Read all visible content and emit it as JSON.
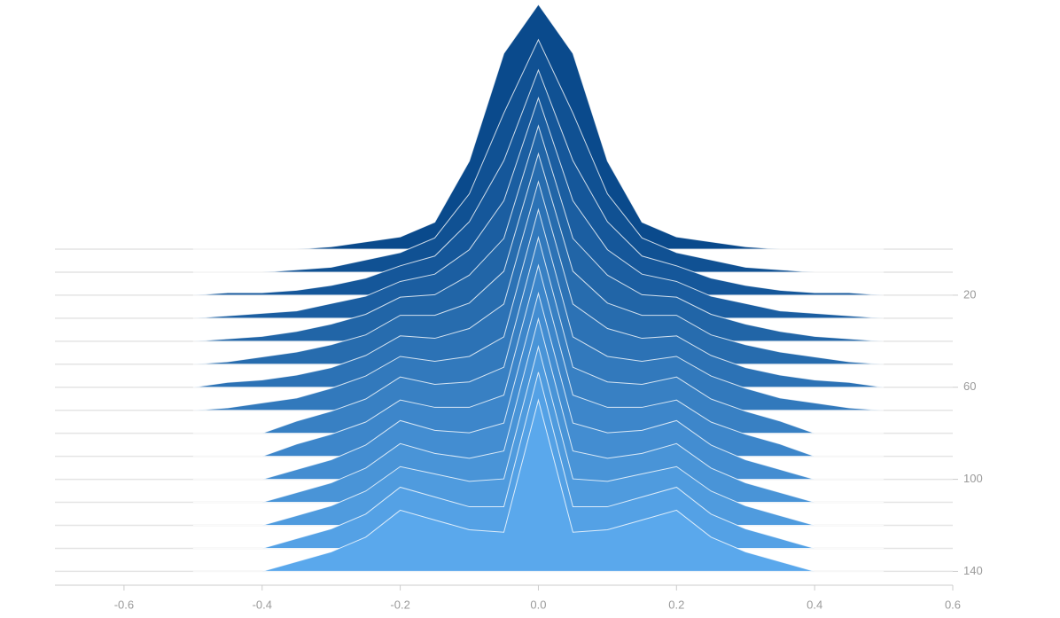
{
  "chart_data": {
    "type": "ridgeline",
    "x": [
      -0.5,
      -0.45,
      -0.4,
      -0.35,
      -0.3,
      -0.25,
      -0.2,
      -0.15,
      -0.1,
      -0.05,
      0,
      0.05,
      0.1,
      0.15,
      0.2,
      0.25,
      0.3,
      0.35,
      0.4,
      0.45,
      0.5
    ],
    "steps": [
      0,
      10,
      20,
      30,
      40,
      50,
      60,
      70,
      80,
      90,
      100,
      110,
      120,
      130,
      140
    ],
    "series": [
      {
        "color": "#0a4a8c",
        "values": [
          0,
          0,
          0,
          0,
          1,
          3,
          5,
          11,
          36,
          80,
          100,
          80,
          36,
          11,
          5,
          3,
          1,
          0,
          0,
          0,
          0
        ]
      },
      {
        "color": "#105193",
        "values": [
          0,
          0,
          0,
          1,
          2,
          5,
          8,
          14,
          32,
          65,
          95,
          65,
          32,
          14,
          8,
          5,
          2,
          1,
          0,
          0,
          0
        ]
      },
      {
        "color": "#15579a",
        "values": [
          0,
          1,
          1,
          2,
          4,
          7,
          12,
          16,
          30,
          55,
          92,
          55,
          30,
          16,
          12,
          7,
          4,
          2,
          1,
          1,
          0
        ]
      },
      {
        "color": "#1b5ea1",
        "values": [
          0,
          1,
          2,
          3,
          6,
          9,
          15,
          18,
          28,
          48,
          90,
          48,
          28,
          18,
          15,
          9,
          6,
          3,
          2,
          1,
          0
        ]
      },
      {
        "color": "#2165a7",
        "values": [
          0,
          1,
          2,
          4,
          7,
          11,
          18,
          19,
          27,
          42,
          88,
          42,
          27,
          19,
          18,
          11,
          7,
          4,
          2,
          1,
          0
        ]
      },
      {
        "color": "#276cae",
        "values": [
          0,
          1,
          3,
          5,
          8,
          12,
          20,
          20,
          25,
          38,
          86,
          38,
          25,
          20,
          20,
          12,
          8,
          5,
          3,
          1,
          0
        ]
      },
      {
        "color": "#2c72b5",
        "values": [
          0,
          2,
          3,
          5,
          8,
          13,
          21,
          20,
          24,
          34,
          84,
          34,
          24,
          20,
          21,
          13,
          8,
          5,
          3,
          2,
          0
        ]
      },
      {
        "color": "#3279bc",
        "values": [
          0,
          1,
          3,
          5,
          9,
          14,
          22,
          20,
          22,
          30,
          82,
          30,
          22,
          20,
          22,
          14,
          9,
          5,
          3,
          1,
          0
        ]
      },
      {
        "color": "#3880c3",
        "values": [
          0,
          0,
          0,
          5,
          9,
          14,
          23,
          20,
          21,
          27,
          80,
          27,
          21,
          20,
          23,
          14,
          9,
          5,
          0,
          0,
          0
        ]
      },
      {
        "color": "#3d86ca",
        "values": [
          0,
          0,
          0,
          5,
          9,
          14,
          23,
          20,
          20,
          25,
          78,
          25,
          20,
          20,
          23,
          14,
          9,
          5,
          0,
          0,
          0
        ]
      },
      {
        "color": "#438dd1",
        "values": [
          0,
          0,
          0,
          4,
          8,
          14,
          24,
          20,
          19,
          23,
          76,
          23,
          19,
          20,
          24,
          14,
          8,
          4,
          0,
          0,
          0
        ]
      },
      {
        "color": "#4994d7",
        "values": [
          0,
          0,
          0,
          4,
          8,
          14,
          24,
          20,
          18,
          21,
          75,
          21,
          18,
          20,
          24,
          14,
          8,
          4,
          0,
          0,
          0
        ]
      },
      {
        "color": "#4f9bde",
        "values": [
          0,
          0,
          0,
          4,
          8,
          14,
          24,
          21,
          18,
          19,
          73,
          19,
          18,
          21,
          24,
          14,
          8,
          4,
          0,
          0,
          0
        ]
      },
      {
        "color": "#54a1e5",
        "values": [
          0,
          0,
          0,
          4,
          8,
          14,
          25,
          21,
          17,
          17,
          72,
          17,
          17,
          21,
          25,
          14,
          8,
          4,
          0,
          0,
          0
        ]
      },
      {
        "color": "#5aa8ec",
        "values": [
          0,
          0,
          0,
          4,
          8,
          14,
          25,
          21,
          17,
          16,
          70,
          16,
          17,
          21,
          25,
          14,
          8,
          4,
          0,
          0,
          0
        ]
      }
    ],
    "xlim": [
      -0.7,
      0.6
    ],
    "xticks": [
      -0.6,
      -0.4,
      -0.2,
      {
        "value": 0,
        "label": "0.0"
      },
      0.2,
      0.4,
      0.6
    ],
    "ylim": [
      0,
      146
    ],
    "yticks": [
      20,
      60,
      100,
      140
    ],
    "y_reversed": true
  }
}
